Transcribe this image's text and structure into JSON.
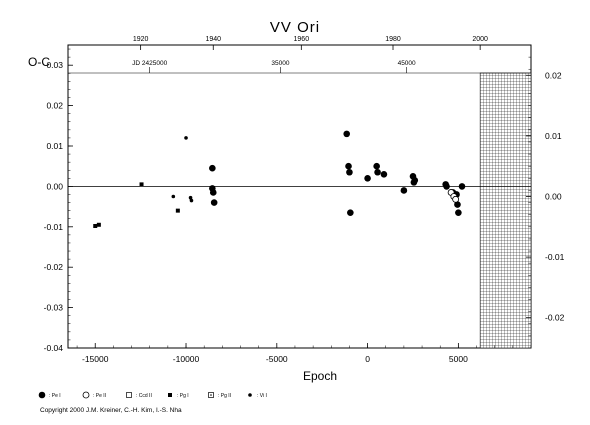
{
  "chart_data": {
    "type": "scatter",
    "title": "VV Ori",
    "ylabel": "O-C",
    "xlabel": "Epoch",
    "xlim": [
      -16500,
      9000
    ],
    "ylim": [
      -0.04,
      0.035
    ],
    "ylim_right": [
      -0.025,
      0.025
    ],
    "x_ticks": [
      -15000,
      -10000,
      -5000,
      0,
      5000
    ],
    "y_ticks": [
      -0.04,
      -0.03,
      -0.02,
      -0.01,
      0.0,
      0.01,
      0.02,
      0.03
    ],
    "y_tick_labels": [
      "-0.04",
      "-0.03",
      "-0.02",
      "-0.01",
      "0.00",
      "0.01",
      "0.02",
      "0.03"
    ],
    "y_right_ticks": [
      -0.02,
      -0.01,
      0.0,
      0.01,
      0.02
    ],
    "y_right_tick_labels": [
      "-0.02",
      "-0.01",
      "0.00",
      "0.01",
      "0.02"
    ],
    "top_year_ticks": [
      {
        "label": "1920",
        "epoch": -12500
      },
      {
        "label": "1940",
        "epoch": -8500
      },
      {
        "label": "1960",
        "epoch": -3650
      },
      {
        "label": "1980",
        "epoch": 1400
      },
      {
        "label": "2000",
        "epoch": 6200
      }
    ],
    "top_jd_labels": [
      {
        "label": "JD 2425000",
        "epoch": -12000
      },
      {
        "label": "35000",
        "epoch": -4800
      },
      {
        "label": "45000",
        "epoch": 2150
      }
    ],
    "hatched_region": {
      "from_epoch": 6200,
      "to_epoch": 9000
    },
    "series": [
      {
        "name": ": Pe I",
        "marker": "filled-circle",
        "points": [
          [
            -8550,
            0.0045
          ],
          [
            -8550,
            -0.0005
          ],
          [
            -8500,
            -0.0015
          ],
          [
            -8450,
            -0.004
          ],
          [
            -1150,
            0.013
          ],
          [
            -1050,
            0.005
          ],
          [
            -1000,
            0.0035
          ],
          [
            -950,
            -0.0065
          ],
          [
            0,
            0.002
          ],
          [
            500,
            0.005
          ],
          [
            550,
            0.0035
          ],
          [
            900,
            0.003
          ],
          [
            2000,
            -0.001
          ],
          [
            2500,
            0.0025
          ],
          [
            2550,
            0.001
          ],
          [
            2600,
            0.0015
          ],
          [
            4300,
            0.0005
          ],
          [
            4350,
            0.0
          ],
          [
            4700,
            -0.0015
          ],
          [
            4900,
            -0.002
          ],
          [
            4950,
            -0.0045
          ],
          [
            5000,
            -0.0065
          ],
          [
            5200,
            0.0
          ]
        ]
      },
      {
        "name": ": Pe II",
        "marker": "open-circle",
        "points": [
          [
            4600,
            -0.0015
          ],
          [
            4750,
            -0.0025
          ],
          [
            4850,
            -0.0032
          ]
        ]
      },
      {
        "name": ": Ccd II",
        "marker": "open-square",
        "points": []
      },
      {
        "name": ": Pg I",
        "marker": "filled-square",
        "points": [
          [
            -15000,
            -0.0098
          ],
          [
            -14800,
            -0.0095
          ],
          [
            -12450,
            0.0005
          ],
          [
            -10450,
            -0.006
          ]
        ]
      },
      {
        "name": ": Pg II",
        "marker": "open-square-dot",
        "points": []
      },
      {
        "name": ": Vi I",
        "marker": "small-dot",
        "points": [
          [
            -10700,
            -0.0025
          ],
          [
            -10000,
            0.012
          ],
          [
            -9750,
            -0.0028
          ],
          [
            -9700,
            -0.0035
          ]
        ]
      }
    ]
  },
  "copyright": "Copyright 2000 J.M. Kreiner, C.-H. Kim, I.-S. Nha"
}
